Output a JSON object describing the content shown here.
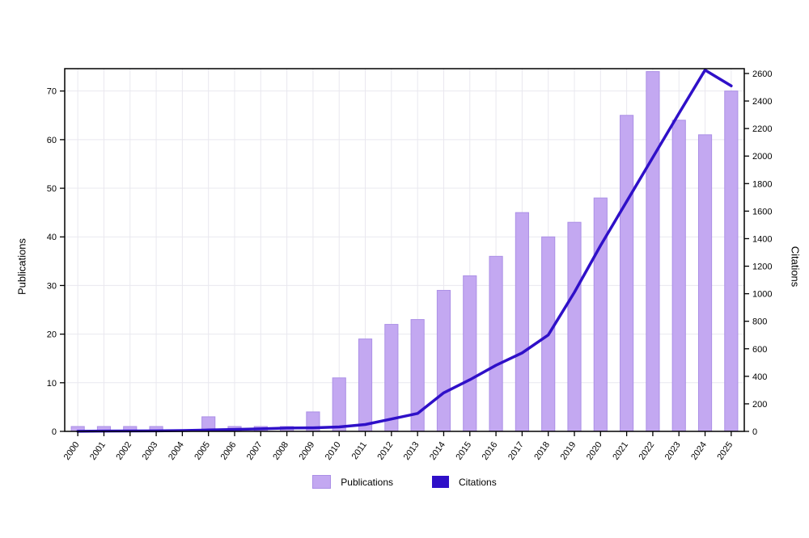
{
  "figure": {
    "background": "#ffffff",
    "frame_color": "#000000",
    "gridline_color": "#e9e8ef"
  },
  "chart_data": {
    "type": "bar+line combo, dual y-axis",
    "categories": [
      "2000",
      "2001",
      "2002",
      "2003",
      "2004",
      "2005",
      "2006",
      "2007",
      "2008",
      "2009",
      "2010",
      "2011",
      "2012",
      "2013",
      "2014",
      "2015",
      "2016",
      "2017",
      "2018",
      "2019",
      "2020",
      "2021",
      "2022",
      "2023",
      "2024",
      "2025"
    ],
    "series": [
      {
        "name": "Publications",
        "type": "bar",
        "axis": "left",
        "color": "#c3a8f1",
        "border_color": "#ab8fe6",
        "values": [
          1,
          1,
          1,
          1,
          0,
          3,
          1,
          1,
          1,
          4,
          11,
          19,
          22,
          23,
          29,
          32,
          36,
          45,
          40,
          43,
          48,
          65,
          74,
          64,
          61,
          70
        ]
      },
      {
        "name": "Citations",
        "type": "line",
        "axis": "right",
        "color": "#2f10c8",
        "values": [
          1,
          2,
          3,
          4,
          6,
          10,
          14,
          18,
          24,
          26,
          32,
          50,
          90,
          130,
          280,
          375,
          480,
          570,
          700,
          1010,
          1350,
          1670,
          1990,
          2310,
          2625,
          2510
        ]
      }
    ],
    "left_axis": {
      "label": "Publications",
      "ticks": [
        0,
        10,
        20,
        30,
        40,
        50,
        60,
        70
      ],
      "min": 0,
      "max": 74.6
    },
    "right_axis": {
      "label": "Citations",
      "ticks": [
        0,
        200,
        400,
        600,
        800,
        1000,
        1200,
        1400,
        1600,
        1800,
        2000,
        2200,
        2400,
        2600
      ],
      "min": 0,
      "max": 2635
    },
    "x_axis": {
      "tick_angle_deg": -55
    },
    "legend": {
      "items": [
        "Publications",
        "Citations"
      ],
      "position": "bottom-center"
    },
    "grid": true
  }
}
